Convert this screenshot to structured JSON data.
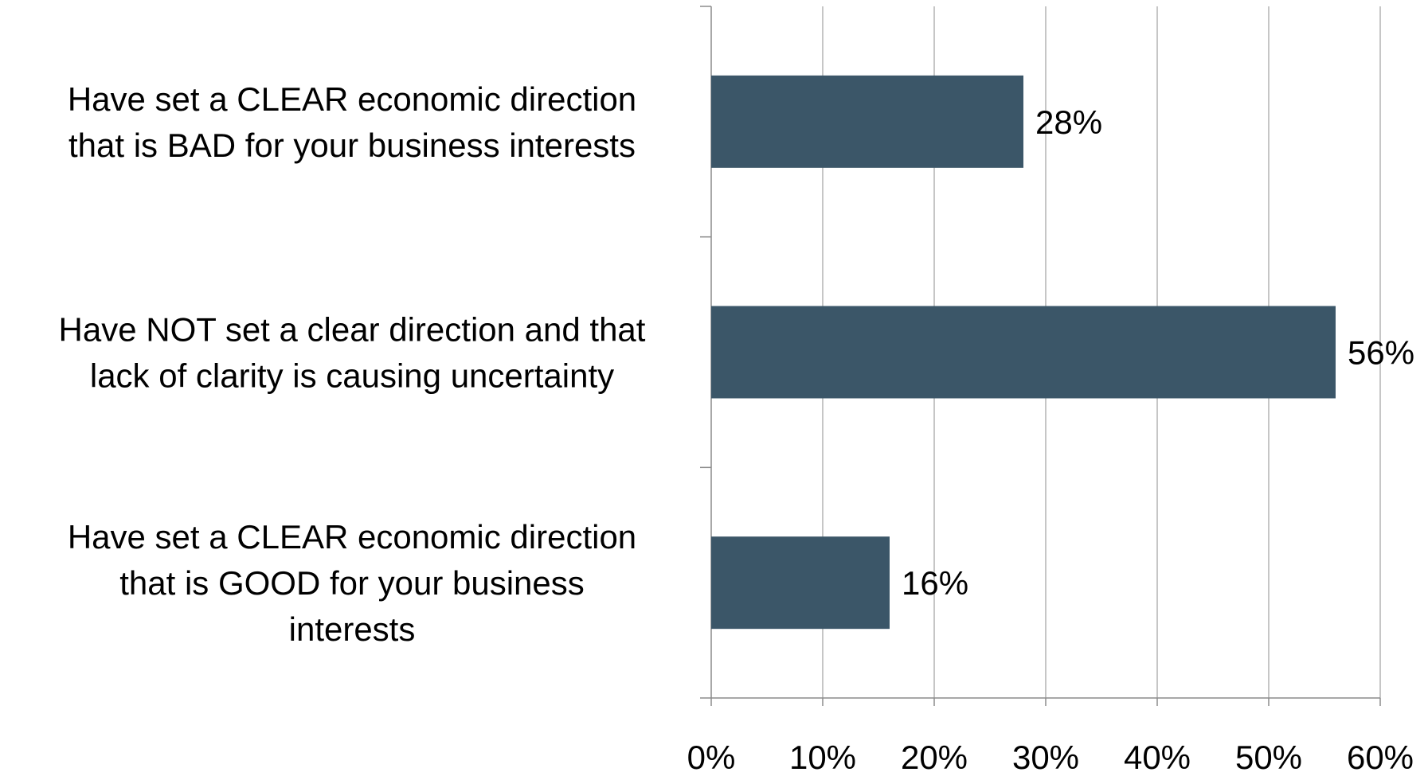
{
  "chart_data": {
    "type": "bar",
    "orientation": "horizontal",
    "categories": [
      "Have set a CLEAR economic direction that is BAD for your business interests",
      "Have NOT set a clear direction and that lack of clarity is causing uncertainty",
      "Have set a CLEAR economic direction that is GOOD for your business interests"
    ],
    "category_lines": [
      [
        "Have set a CLEAR economic direction",
        "that is BAD for your business interests"
      ],
      [
        "Have NOT set a clear direction and that",
        "lack of clarity is causing uncertainty"
      ],
      [
        "Have set a CLEAR economic direction",
        "that is GOOD for your business",
        "interests"
      ]
    ],
    "values": [
      28,
      56,
      16
    ],
    "data_labels": [
      "28%",
      "56%",
      "16%"
    ],
    "xlim": [
      0,
      60
    ],
    "x_ticks": [
      0,
      10,
      20,
      30,
      40,
      50,
      60
    ],
    "x_tick_labels": [
      "0%",
      "10%",
      "20%",
      "30%",
      "40%",
      "50%",
      "60%"
    ],
    "title": "",
    "xlabel": "",
    "ylabel": "",
    "grid": "vertical",
    "legend": "none",
    "colors": {
      "bar": "#3b5668",
      "grid": "#b3b3b3",
      "axis": "#8c8c8c",
      "text": "#000000"
    }
  }
}
